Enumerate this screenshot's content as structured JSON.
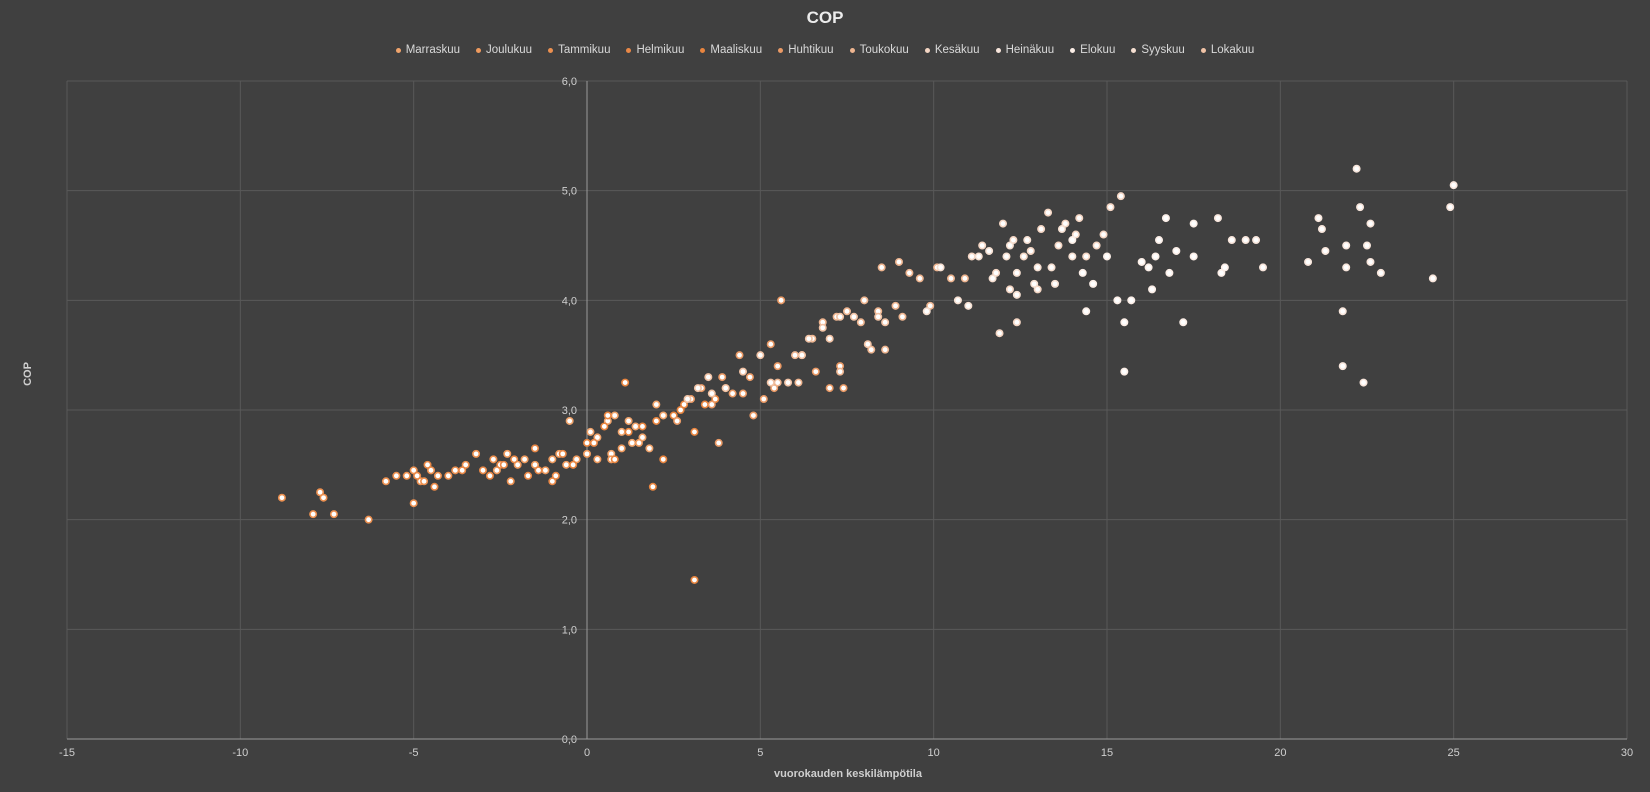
{
  "chart_data": {
    "type": "scatter",
    "title": "COP",
    "xlabel": "vuorokauden keskilämpötila",
    "ylabel": "COP",
    "xlim": [
      -15,
      30
    ],
    "ylim": [
      0,
      6
    ],
    "x_ticks": [
      -15,
      -10,
      -5,
      0,
      5,
      10,
      15,
      20,
      25,
      30
    ],
    "x_tick_labels": [
      "-15",
      "-10",
      "-5",
      "0",
      "5",
      "10",
      "15",
      "20",
      "25",
      "30"
    ],
    "y_ticks": [
      0,
      1,
      2,
      3,
      4,
      5,
      6
    ],
    "y_tick_labels": [
      "0,0",
      "1,0",
      "2,0",
      "3,0",
      "4,0",
      "5,0",
      "6,0"
    ],
    "grid": true,
    "legend_position": "top",
    "series": [
      {
        "name": "Marraskuu",
        "color": "#f0a46c",
        "points": [
          [
            -0.5,
            2.9
          ],
          [
            0.1,
            2.8
          ],
          [
            0.3,
            2.75
          ],
          [
            0.6,
            2.9
          ],
          [
            0.8,
            2.95
          ],
          [
            1.0,
            2.8
          ],
          [
            1.2,
            2.9
          ],
          [
            1.4,
            2.85
          ],
          [
            1.6,
            2.75
          ],
          [
            2.0,
            3.05
          ],
          [
            2.2,
            2.95
          ],
          [
            1.8,
            2.65
          ],
          [
            1.3,
            2.7
          ],
          [
            0.7,
            2.6
          ]
        ]
      },
      {
        "name": "Joulukuu",
        "color": "#ee9a5e",
        "points": [
          [
            -1.2,
            2.45
          ],
          [
            -1.0,
            2.55
          ],
          [
            -0.8,
            2.6
          ],
          [
            -1.5,
            2.5
          ],
          [
            -2.0,
            2.5
          ],
          [
            -2.3,
            2.6
          ],
          [
            -0.6,
            2.5
          ],
          [
            -0.3,
            2.55
          ],
          [
            0.0,
            2.6
          ],
          [
            0.3,
            2.55
          ],
          [
            0.7,
            2.55
          ],
          [
            1.0,
            2.65
          ],
          [
            1.5,
            2.7
          ],
          [
            -1.8,
            2.55
          ],
          [
            -2.6,
            2.45
          ]
        ]
      },
      {
        "name": "Tammikuu",
        "color": "#ec9050",
        "points": [
          [
            -8.8,
            2.2
          ],
          [
            -7.9,
            2.05
          ],
          [
            -7.7,
            2.25
          ],
          [
            -7.6,
            2.2
          ],
          [
            -7.3,
            2.05
          ],
          [
            -6.3,
            2.0
          ],
          [
            -5.8,
            2.35
          ],
          [
            -5.5,
            2.4
          ],
          [
            -5.2,
            2.4
          ],
          [
            -5.0,
            2.45
          ],
          [
            -4.8,
            2.35
          ],
          [
            -4.5,
            2.45
          ],
          [
            -4.3,
            2.4
          ],
          [
            -4.0,
            2.4
          ],
          [
            -3.5,
            2.5
          ],
          [
            -3.2,
            2.6
          ],
          [
            -2.7,
            2.55
          ],
          [
            -2.2,
            2.35
          ],
          [
            -5.0,
            2.15
          ],
          [
            -4.7,
            2.35
          ],
          [
            -3.8,
            2.45
          ]
        ]
      },
      {
        "name": "Helmikuu",
        "color": "#e98847",
        "points": [
          [
            -3.0,
            2.45
          ],
          [
            -2.5,
            2.5
          ],
          [
            -2.1,
            2.55
          ],
          [
            -1.7,
            2.4
          ],
          [
            -1.4,
            2.45
          ],
          [
            -1.0,
            2.35
          ],
          [
            -0.7,
            2.6
          ],
          [
            -4.9,
            2.4
          ],
          [
            -4.6,
            2.5
          ],
          [
            -4.4,
            2.3
          ],
          [
            -3.6,
            2.45
          ],
          [
            -2.8,
            2.4
          ],
          [
            -1.5,
            2.65
          ],
          [
            0.2,
            2.7
          ],
          [
            -0.9,
            2.4
          ],
          [
            -2.4,
            2.5
          ]
        ]
      },
      {
        "name": "Maaliskuu",
        "color": "#e9853f",
        "points": [
          [
            0.0,
            2.7
          ],
          [
            0.5,
            2.85
          ],
          [
            0.8,
            2.55
          ],
          [
            1.2,
            2.8
          ],
          [
            1.6,
            2.85
          ],
          [
            1.9,
            2.3
          ],
          [
            2.2,
            2.55
          ],
          [
            2.5,
            2.95
          ],
          [
            2.8,
            3.05
          ],
          [
            3.1,
            2.8
          ],
          [
            3.4,
            3.05
          ],
          [
            3.7,
            3.1
          ],
          [
            4.0,
            3.2
          ],
          [
            -0.4,
            2.5
          ],
          [
            0.6,
            2.95
          ],
          [
            1.1,
            3.25
          ],
          [
            3.1,
            1.45
          ],
          [
            2.0,
            2.9
          ],
          [
            2.7,
            3.0
          ]
        ]
      },
      {
        "name": "Huhtikuu",
        "color": "#ea9a66",
        "points": [
          [
            2.6,
            2.9
          ],
          [
            3.0,
            3.1
          ],
          [
            3.3,
            3.2
          ],
          [
            3.6,
            3.05
          ],
          [
            3.9,
            3.3
          ],
          [
            4.2,
            3.15
          ],
          [
            4.5,
            3.15
          ],
          [
            4.8,
            2.95
          ],
          [
            5.1,
            3.1
          ],
          [
            5.4,
            3.2
          ],
          [
            5.6,
            4.0
          ],
          [
            5.3,
            3.6
          ],
          [
            6.2,
            3.5
          ],
          [
            6.6,
            3.35
          ],
          [
            7.0,
            3.2
          ],
          [
            7.3,
            3.4
          ],
          [
            7.4,
            3.2
          ],
          [
            4.4,
            3.5
          ],
          [
            3.8,
            2.7
          ],
          [
            4.7,
            3.3
          ],
          [
            5.5,
            3.4
          ]
        ]
      },
      {
        "name": "Toukokuu",
        "color": "#eeb590",
        "points": [
          [
            5.5,
            3.25
          ],
          [
            6.0,
            3.5
          ],
          [
            6.5,
            3.65
          ],
          [
            6.8,
            3.8
          ],
          [
            7.2,
            3.85
          ],
          [
            7.5,
            3.9
          ],
          [
            7.9,
            3.8
          ],
          [
            8.2,
            3.55
          ],
          [
            8.4,
            3.9
          ],
          [
            8.6,
            3.55
          ],
          [
            8.9,
            3.95
          ],
          [
            9.0,
            4.35
          ],
          [
            9.3,
            4.25
          ],
          [
            9.6,
            4.2
          ],
          [
            9.9,
            3.95
          ],
          [
            10.1,
            4.3
          ],
          [
            10.5,
            4.2
          ],
          [
            10.9,
            4.2
          ],
          [
            8.5,
            4.3
          ],
          [
            7.3,
            3.35
          ],
          [
            8.0,
            4.0
          ],
          [
            6.1,
            3.25
          ],
          [
            9.1,
            3.85
          ]
        ]
      },
      {
        "name": "Kesäkuu",
        "color": "#f4d6c4",
        "points": [
          [
            11.1,
            4.4
          ],
          [
            11.4,
            4.5
          ],
          [
            11.8,
            4.25
          ],
          [
            12.0,
            4.7
          ],
          [
            12.3,
            4.55
          ],
          [
            12.6,
            4.4
          ],
          [
            12.8,
            4.45
          ],
          [
            13.1,
            4.65
          ],
          [
            13.3,
            4.8
          ],
          [
            13.6,
            4.5
          ],
          [
            13.8,
            4.7
          ],
          [
            14.1,
            4.6
          ],
          [
            14.4,
            4.4
          ],
          [
            14.7,
            4.5
          ],
          [
            15.1,
            4.85
          ],
          [
            15.4,
            4.95
          ],
          [
            12.2,
            4.1
          ],
          [
            11.9,
            3.7
          ],
          [
            12.4,
            3.8
          ],
          [
            13.0,
            4.1
          ],
          [
            14.9,
            4.6
          ],
          [
            14.2,
            4.75
          ]
        ]
      },
      {
        "name": "Heinäkuu",
        "color": "#f8e6dc",
        "points": [
          [
            18.2,
            4.75
          ],
          [
            18.6,
            4.55
          ],
          [
            19.0,
            4.55
          ],
          [
            19.3,
            4.55
          ],
          [
            19.5,
            4.3
          ],
          [
            20.8,
            4.35
          ],
          [
            21.1,
            4.75
          ],
          [
            21.3,
            4.45
          ],
          [
            21.8,
            3.9
          ],
          [
            21.9,
            4.5
          ],
          [
            22.2,
            5.2
          ],
          [
            22.3,
            4.85
          ],
          [
            22.5,
            4.5
          ],
          [
            22.6,
            4.35
          ],
          [
            22.9,
            4.25
          ],
          [
            24.4,
            4.2
          ],
          [
            24.9,
            4.85
          ],
          [
            25.0,
            5.05
          ],
          [
            21.9,
            4.3
          ],
          [
            22.4,
            3.25
          ],
          [
            21.8,
            3.4
          ],
          [
            22.6,
            4.7
          ],
          [
            21.2,
            4.65
          ]
        ]
      },
      {
        "name": "Elokuu",
        "color": "#fbeee7",
        "points": [
          [
            14.0,
            4.55
          ],
          [
            14.3,
            4.25
          ],
          [
            14.6,
            4.15
          ],
          [
            15.0,
            4.4
          ],
          [
            15.3,
            4.0
          ],
          [
            15.5,
            3.8
          ],
          [
            15.7,
            4.0
          ],
          [
            16.0,
            4.35
          ],
          [
            16.3,
            4.1
          ],
          [
            16.5,
            4.55
          ],
          [
            16.7,
            4.75
          ],
          [
            17.0,
            4.45
          ],
          [
            17.2,
            3.8
          ],
          [
            17.5,
            4.4
          ],
          [
            18.3,
            4.25
          ],
          [
            15.5,
            3.35
          ],
          [
            16.8,
            4.25
          ],
          [
            16.4,
            4.4
          ],
          [
            17.5,
            4.7
          ],
          [
            18.4,
            4.3
          ],
          [
            16.2,
            4.3
          ],
          [
            14.4,
            3.9
          ]
        ]
      },
      {
        "name": "Syyskuu",
        "color": "#f6e0d2",
        "points": [
          [
            9.8,
            3.9
          ],
          [
            10.2,
            4.3
          ],
          [
            10.7,
            4.0
          ],
          [
            11.0,
            3.95
          ],
          [
            11.3,
            4.4
          ],
          [
            11.7,
            4.2
          ],
          [
            12.1,
            4.4
          ],
          [
            12.4,
            4.25
          ],
          [
            12.7,
            4.55
          ],
          [
            13.0,
            4.3
          ],
          [
            13.4,
            4.3
          ],
          [
            13.7,
            4.65
          ],
          [
            14.0,
            4.4
          ],
          [
            12.4,
            4.05
          ],
          [
            12.2,
            4.5
          ],
          [
            11.6,
            4.45
          ],
          [
            12.9,
            4.15
          ],
          [
            13.5,
            4.15
          ]
        ]
      },
      {
        "name": "Lokakuu",
        "color": "#f1c3a6",
        "points": [
          [
            4.0,
            3.2
          ],
          [
            4.5,
            3.35
          ],
          [
            5.0,
            3.5
          ],
          [
            5.3,
            3.25
          ],
          [
            5.8,
            3.25
          ],
          [
            6.2,
            3.5
          ],
          [
            6.4,
            3.65
          ],
          [
            6.8,
            3.75
          ],
          [
            7.0,
            3.65
          ],
          [
            7.3,
            3.85
          ],
          [
            7.7,
            3.85
          ],
          [
            8.1,
            3.6
          ],
          [
            8.4,
            3.85
          ],
          [
            8.6,
            3.8
          ],
          [
            3.5,
            3.3
          ],
          [
            3.2,
            3.2
          ],
          [
            2.9,
            3.1
          ],
          [
            3.6,
            3.15
          ]
        ]
      }
    ]
  }
}
